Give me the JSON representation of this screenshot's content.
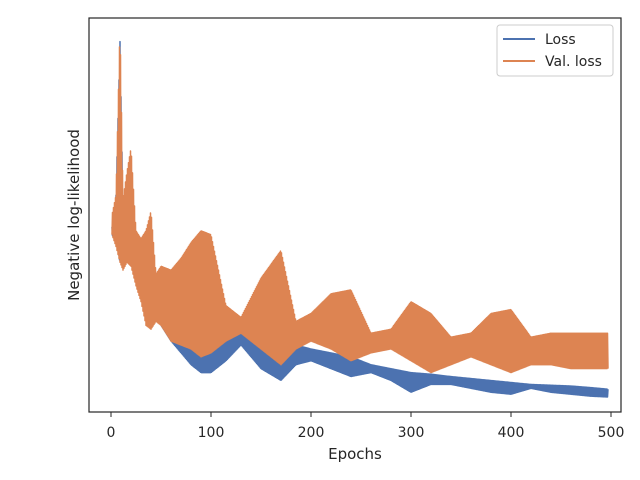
{
  "chart_data": {
    "type": "line",
    "xlabel": "Epochs",
    "ylabel": "Negative log-likelihood",
    "xlim": [
      -22,
      510
    ],
    "ylim": [
      0,
      1
    ],
    "y_ticks_shown": false,
    "x_ticks": [
      0,
      100,
      200,
      300,
      400,
      500
    ],
    "grid": false,
    "legend_position": "top-right",
    "series": [
      {
        "name": "Loss",
        "color": "#4c72b0",
        "trend_envelope": {
          "epochs": [
            1,
            5,
            9,
            12,
            16,
            20,
            25,
            30,
            35,
            40,
            45,
            50,
            60,
            70,
            80,
            90,
            100,
            115,
            130,
            150,
            170,
            185,
            200,
            220,
            240,
            260,
            280,
            300,
            320,
            340,
            360,
            380,
            400,
            420,
            440,
            460,
            480,
            497
          ],
          "upper": [
            0.47,
            0.55,
            0.94,
            0.52,
            0.56,
            0.54,
            0.44,
            0.39,
            0.4,
            0.3,
            0.33,
            0.31,
            0.29,
            0.27,
            0.26,
            0.25,
            0.24,
            0.22,
            0.21,
            0.2,
            0.19,
            0.17,
            0.16,
            0.15,
            0.14,
            0.12,
            0.11,
            0.1,
            0.096,
            0.09,
            0.085,
            0.08,
            0.075,
            0.07,
            0.068,
            0.066,
            0.062,
            0.058
          ],
          "lower": [
            0.45,
            0.43,
            0.38,
            0.38,
            0.4,
            0.38,
            0.34,
            0.3,
            0.27,
            0.23,
            0.24,
            0.22,
            0.18,
            0.15,
            0.12,
            0.1,
            0.1,
            0.13,
            0.17,
            0.11,
            0.08,
            0.12,
            0.13,
            0.11,
            0.09,
            0.1,
            0.08,
            0.05,
            0.07,
            0.07,
            0.06,
            0.05,
            0.045,
            0.06,
            0.05,
            0.045,
            0.04,
            0.038
          ]
        }
      },
      {
        "name": "Val. loss",
        "color": "#dd8452",
        "trend_envelope": {
          "epochs": [
            1,
            5,
            9,
            12,
            16,
            20,
            25,
            30,
            35,
            40,
            45,
            50,
            60,
            70,
            80,
            90,
            100,
            115,
            130,
            150,
            170,
            185,
            200,
            220,
            240,
            260,
            280,
            300,
            320,
            340,
            360,
            380,
            400,
            420,
            440,
            460,
            480,
            497
          ],
          "upper": [
            0.5,
            0.55,
            0.98,
            0.54,
            0.61,
            0.67,
            0.46,
            0.44,
            0.46,
            0.51,
            0.35,
            0.37,
            0.36,
            0.39,
            0.43,
            0.46,
            0.45,
            0.27,
            0.24,
            0.34,
            0.41,
            0.23,
            0.25,
            0.3,
            0.31,
            0.2,
            0.21,
            0.28,
            0.25,
            0.19,
            0.2,
            0.25,
            0.26,
            0.19,
            0.2,
            0.2,
            0.2,
            0.2
          ],
          "lower": [
            0.45,
            0.42,
            0.38,
            0.36,
            0.38,
            0.37,
            0.32,
            0.28,
            0.22,
            0.21,
            0.23,
            0.22,
            0.18,
            0.17,
            0.16,
            0.14,
            0.15,
            0.18,
            0.2,
            0.16,
            0.12,
            0.16,
            0.18,
            0.16,
            0.13,
            0.15,
            0.16,
            0.13,
            0.1,
            0.12,
            0.14,
            0.12,
            0.1,
            0.12,
            0.12,
            0.11,
            0.11,
            0.11
          ]
        }
      }
    ]
  }
}
